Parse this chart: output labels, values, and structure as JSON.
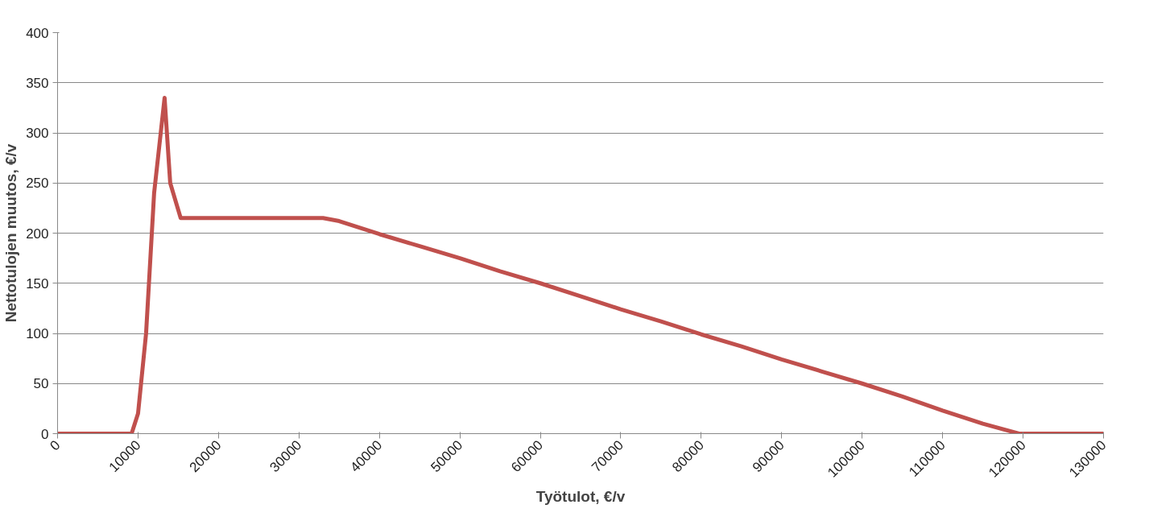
{
  "chart_data": {
    "type": "line",
    "xlabel": "Työtulot, €/v",
    "ylabel": "Nettotulojen muutos, €/v",
    "x": [
      0,
      9200,
      10000,
      11000,
      12000,
      13300,
      14000,
      15300,
      33000,
      35000,
      40000,
      45000,
      50000,
      55000,
      60000,
      65000,
      70000,
      75000,
      80000,
      85000,
      90000,
      95000,
      100000,
      105000,
      110000,
      115000,
      119500,
      130000
    ],
    "series": [
      {
        "color": "#c0504d",
        "values": [
          0,
          0,
          20,
          100,
          240,
          335,
          250,
          215,
          215,
          212,
          199,
          187,
          175,
          162,
          150,
          137,
          124,
          112,
          99,
          87,
          74,
          62,
          50,
          37,
          23,
          10,
          0,
          0
        ]
      }
    ],
    "xlim": [
      0,
      130000
    ],
    "xticks": [
      0,
      10000,
      20000,
      30000,
      40000,
      50000,
      60000,
      70000,
      80000,
      90000,
      100000,
      110000,
      120000,
      130000
    ],
    "ylim": [
      0,
      400
    ],
    "yticks": [
      0,
      50,
      100,
      150,
      200,
      250,
      300,
      350,
      400
    ],
    "grid": "y",
    "marker": "none",
    "line_style": "solid"
  }
}
